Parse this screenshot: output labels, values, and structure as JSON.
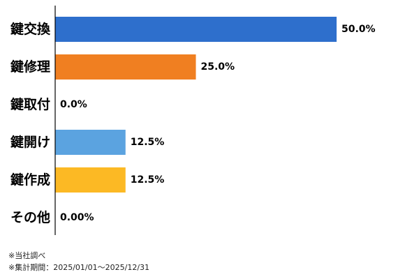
{
  "chart_data": {
    "type": "bar",
    "orientation": "horizontal",
    "categories": [
      "鍵交換",
      "鍵修理",
      "鍵取付",
      "鍵開け",
      "鍵作成",
      "その他"
    ],
    "values": [
      50.0,
      25.0,
      0.0,
      12.5,
      12.5,
      0.0
    ],
    "value_labels": [
      "50.0%",
      "25.0%",
      "0.0%",
      "12.5%",
      "12.5%",
      "0.00%"
    ],
    "colors": [
      "#2E6FCC",
      "#F07F21",
      "#9E9E9E",
      "#5BA3E0",
      "#FCB924",
      "#9E9E9E"
    ],
    "xlim": [
      0,
      50
    ],
    "grid": false,
    "legend": "none"
  },
  "footnotes": {
    "note1": "※当社調べ",
    "note2": "※集計期間：2025/01/01〜2025/12/31"
  }
}
